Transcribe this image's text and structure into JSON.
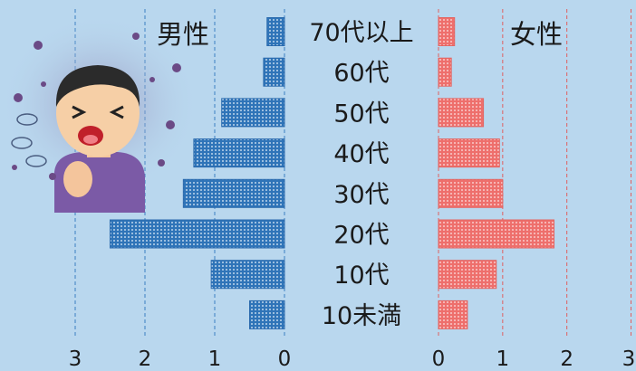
{
  "chart_data": {
    "type": "bar",
    "orientation": "horizontal",
    "layout": "population-pyramid",
    "categories": [
      "70代以上",
      "60代",
      "50代",
      "40代",
      "30代",
      "20代",
      "10代",
      "10未満"
    ],
    "series": [
      {
        "name": "男性",
        "side": "left",
        "values": [
          0.25,
          0.3,
          0.9,
          1.3,
          1.45,
          2.5,
          1.05,
          0.5
        ],
        "color": "#3a7fc2"
      },
      {
        "name": "女性",
        "side": "right",
        "values": [
          0.25,
          0.2,
          0.7,
          0.95,
          1.0,
          1.8,
          0.9,
          0.45
        ],
        "color": "#ee7a78"
      }
    ],
    "xlim": [
      0,
      3
    ],
    "ticks": [
      "3",
      "2",
      "1",
      "0"
    ],
    "female_ticks": [
      "0",
      "1",
      "2",
      "3"
    ],
    "grid": true
  },
  "colors": {
    "background": "#b9d7ee",
    "male_grid": "#3a7fc2",
    "female_grid": "#e06060"
  },
  "illustration": {
    "icon": "coughing-man-icon"
  }
}
